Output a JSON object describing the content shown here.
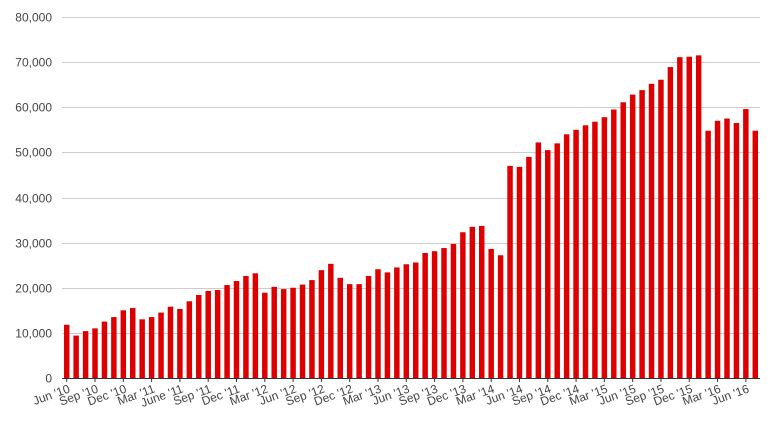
{
  "chart_data": {
    "type": "bar",
    "ylim": [
      0,
      80000
    ],
    "yticks": [
      "0",
      "10,000",
      "20,000",
      "30,000",
      "40,000",
      "50,000",
      "60,000",
      "70,000",
      "80,000"
    ],
    "ytick_values": [
      0,
      10000,
      20000,
      30000,
      40000,
      50000,
      60000,
      70000,
      80000
    ],
    "grid": true,
    "bar_color": "#dd0000",
    "x_labels_shown": [
      {
        "index": 0,
        "label": "Jun '10"
      },
      {
        "index": 3,
        "label": "Sep '10"
      },
      {
        "index": 6,
        "label": "Dec '10"
      },
      {
        "index": 9,
        "label": "Mar '11"
      },
      {
        "index": 12,
        "label": "June '11"
      },
      {
        "index": 15,
        "label": "Sep '11"
      },
      {
        "index": 18,
        "label": "Dec '11"
      },
      {
        "index": 21,
        "label": "Mar '12"
      },
      {
        "index": 24,
        "label": "Jun '12"
      },
      {
        "index": 27,
        "label": "Sep '12"
      },
      {
        "index": 30,
        "label": "Dec '12"
      },
      {
        "index": 33,
        "label": "Mar '13"
      },
      {
        "index": 36,
        "label": "Jun '13"
      },
      {
        "index": 39,
        "label": "Sep '13"
      },
      {
        "index": 42,
        "label": "Dec '13"
      },
      {
        "index": 45,
        "label": "Mar '14"
      },
      {
        "index": 48,
        "label": "Jun '14"
      },
      {
        "index": 51,
        "label": "Sep '14"
      },
      {
        "index": 54,
        "label": "Dec '14"
      },
      {
        "index": 57,
        "label": "Mar '15"
      },
      {
        "index": 60,
        "label": "Jun '15"
      },
      {
        "index": 63,
        "label": "Sep '15"
      },
      {
        "index": 66,
        "label": "Dec '15"
      },
      {
        "index": 69,
        "label": "Mar '16"
      },
      {
        "index": 72,
        "label": "Jun '16"
      }
    ],
    "values": [
      11800,
      9400,
      10400,
      11000,
      12500,
      13500,
      15000,
      15500,
      13000,
      13500,
      14500,
      15800,
      15300,
      17000,
      18400,
      19300,
      19500,
      20600,
      21500,
      22600,
      23200,
      18900,
      20200,
      19700,
      20000,
      20700,
      21700,
      23900,
      25300,
      22200,
      20800,
      20800,
      22600,
      24100,
      23400,
      24500,
      25200,
      25600,
      27700,
      28100,
      28800,
      29700,
      32300,
      33500,
      33700,
      28600,
      27200,
      47000,
      46800,
      49000,
      52200,
      50500,
      52000,
      54000,
      55000,
      56000,
      56800,
      57800,
      59500,
      61100,
      62800,
      63800,
      65200,
      66100,
      68900,
      71100,
      71200,
      71500,
      54800,
      57000,
      57500,
      56500,
      59600,
      54800
    ]
  }
}
